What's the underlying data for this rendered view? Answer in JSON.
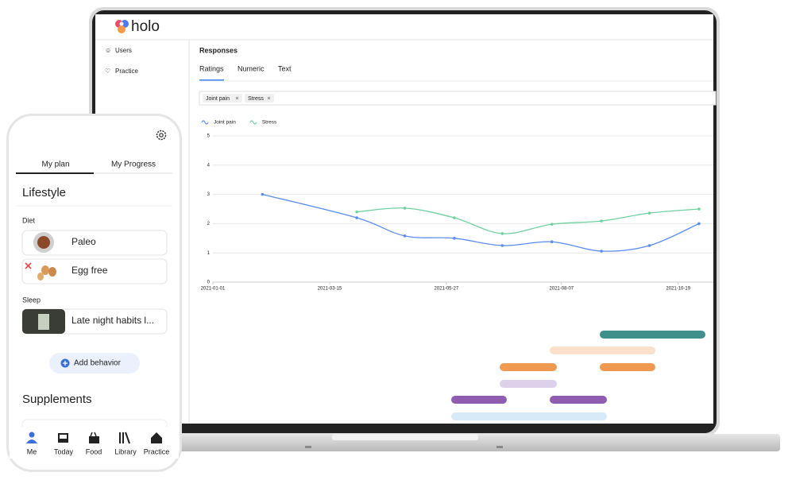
{
  "app": {
    "logo": "holo",
    "sidebar": [
      "Users",
      "Practice"
    ],
    "section": "Responses",
    "tabs": [
      "Ratings",
      "Numeric",
      "Text"
    ],
    "filters": [
      "Joint pain",
      "Stress"
    ]
  },
  "chart_data": {
    "type": "line",
    "x": [
      "2021-02-01",
      "2021-04-01",
      "2021-05-01",
      "2021-06-01",
      "2021-07-01",
      "2021-08-01",
      "2021-09-01",
      "2021-10-01",
      "2021-11-01"
    ],
    "series": [
      {
        "name": "Joint pain",
        "color": "#5b8def",
        "values": [
          3.0,
          2.2,
          1.58,
          1.5,
          1.25,
          1.38,
          1.06,
          1.25,
          2.0
        ]
      },
      {
        "name": "Stress",
        "color": "#6fd1a0",
        "values": [
          null,
          2.4,
          2.53,
          2.2,
          1.66,
          1.98,
          2.09,
          2.36,
          2.5
        ]
      }
    ],
    "xlim": [
      "2021-01-01",
      "2021-11-10"
    ],
    "xticks": [
      "2021-01-01",
      "2021-03-15",
      "2021-05-27",
      "2021-08-07",
      "2021-10-19"
    ],
    "ylim": [
      0,
      5
    ],
    "yticks": [
      0,
      1,
      2,
      3,
      4,
      5
    ],
    "grid": true,
    "legend": "top-left"
  },
  "phone": {
    "tabs": [
      "My plan",
      "My Progress"
    ],
    "lifestyle": "Lifestyle",
    "groups": [
      {
        "label": "Diet",
        "items": [
          "Paleo",
          "Egg free"
        ]
      },
      {
        "label": "Sleep",
        "items": [
          "Late night habits l..."
        ]
      }
    ],
    "add_button": "Add behavior",
    "supplements": "Supplements",
    "nav": [
      "Me",
      "Today",
      "Food",
      "Library",
      "Practice"
    ]
  }
}
